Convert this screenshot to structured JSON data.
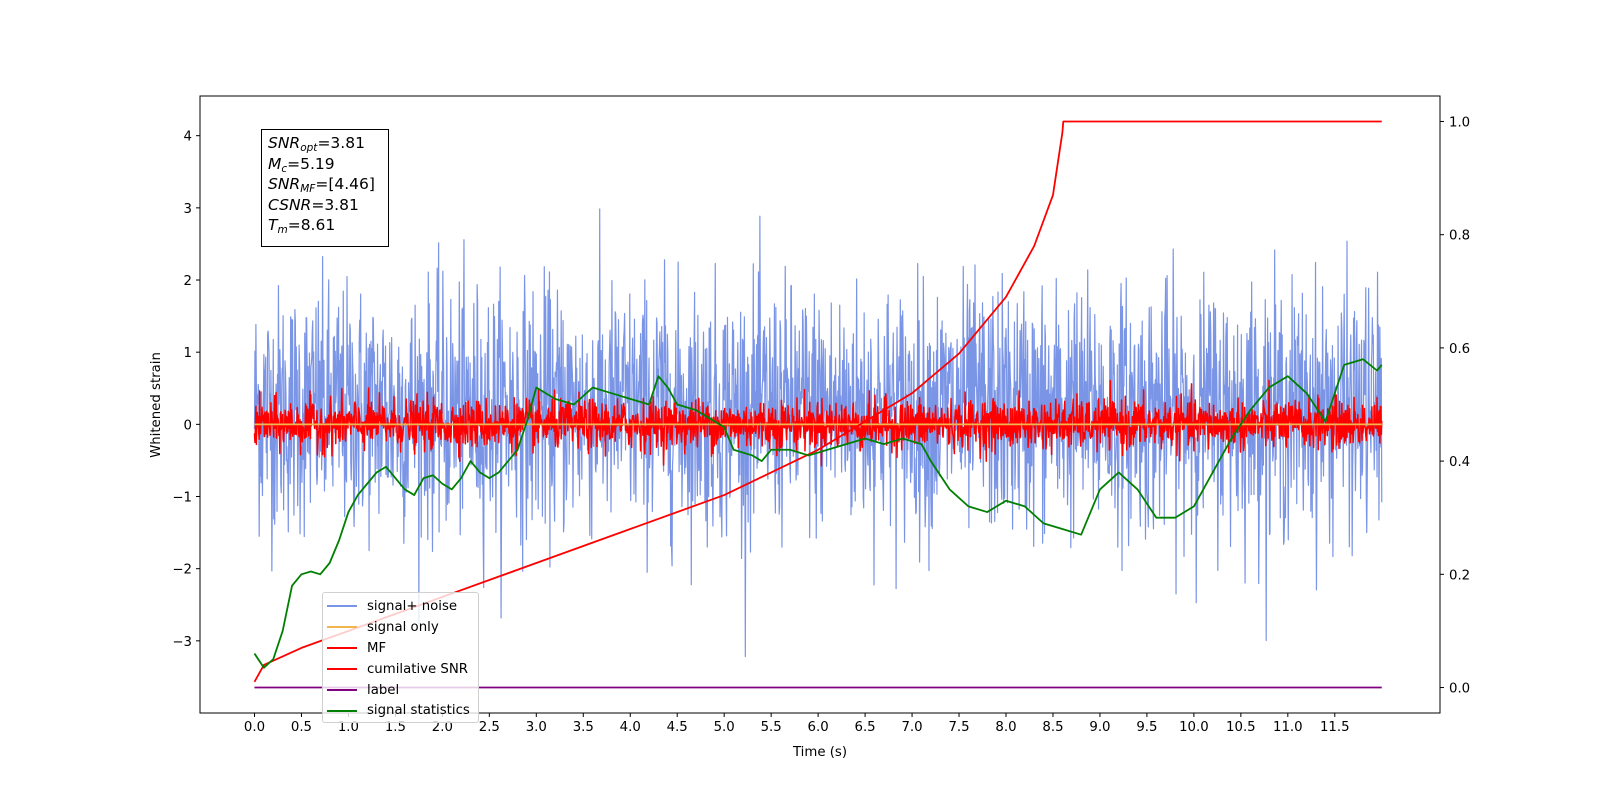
{
  "chart_data": {
    "type": "line",
    "xlabel": "Time (s)",
    "ylabel": "Whitened strain",
    "x_ticks": [
      "0.0",
      "0.5",
      "1.0",
      "1.5",
      "2.0",
      "2.5",
      "3.0",
      "3.5",
      "4.0",
      "4.5",
      "5.0",
      "5.5",
      "6.0",
      "6.5",
      "7.0",
      "7.5",
      "8.0",
      "8.5",
      "9.0",
      "9.5",
      "10.0",
      "10.5",
      "11.0",
      "11.5"
    ],
    "y_ticks_left": [
      "−3",
      "−2",
      "−1",
      "0",
      "1",
      "2",
      "3",
      "4"
    ],
    "y_ticks_right": [
      "0.0",
      "0.2",
      "0.4",
      "0.6",
      "0.8",
      "1.0"
    ],
    "xlim": [
      -0.58,
      12.62
    ],
    "ylim_left": [
      -4.0,
      4.55
    ],
    "ylim_right": [
      -0.045,
      1.045
    ],
    "legend_placement": "lower-left",
    "annotation": {
      "snr_opt": {
        "sym": "SNR",
        "sub": "opt",
        "value": "=3.81"
      },
      "mc": {
        "sym": "M",
        "sub": "c",
        "value": "=5.19"
      },
      "snr_mf": {
        "sym": "SNR",
        "sub": "MF",
        "value": "=[4.46]"
      },
      "csnr": {
        "sym": "CSNR",
        "value": "=3.81"
      },
      "tm": {
        "sym": "T",
        "sub": "m",
        "value": "=8.61"
      }
    },
    "series": [
      {
        "name": "signal+ noise",
        "color": "#7b95e6",
        "axis": "left",
        "kind": "noise",
        "center": 0.2,
        "std": 0.85,
        "range": [
          0,
          12.0
        ]
      },
      {
        "name": "signal only",
        "color": "#f0b64d",
        "axis": "left",
        "kind": "flat",
        "value": 0.0,
        "range": [
          0,
          12.0
        ]
      },
      {
        "name": "MF",
        "color": "#ff0000",
        "axis": "left",
        "kind": "noise",
        "center": 0.0,
        "std": 0.17,
        "range": [
          0,
          12.0
        ]
      },
      {
        "name": "cumilative SNR",
        "color": "#ff0000",
        "axis": "right",
        "points": [
          [
            0,
            0.01
          ],
          [
            0.1,
            0.04
          ],
          [
            0.5,
            0.07
          ],
          [
            1.0,
            0.1
          ],
          [
            2.0,
            0.16
          ],
          [
            3.0,
            0.22
          ],
          [
            4.0,
            0.28
          ],
          [
            5.0,
            0.34
          ],
          [
            6.0,
            0.42
          ],
          [
            7.0,
            0.52
          ],
          [
            7.5,
            0.59
          ],
          [
            8.0,
            0.69
          ],
          [
            8.3,
            0.78
          ],
          [
            8.5,
            0.87
          ],
          [
            8.6,
            0.98
          ],
          [
            8.61,
            1.0
          ],
          [
            12.0,
            1.0
          ]
        ]
      },
      {
        "name": "label",
        "color": "#800080",
        "axis": "right",
        "points": [
          [
            0,
            0.0
          ],
          [
            12.0,
            0.0
          ]
        ]
      },
      {
        "name": "signal statistics",
        "color": "#008000",
        "axis": "right",
        "points": [
          [
            0,
            0.06
          ],
          [
            0.1,
            0.035
          ],
          [
            0.2,
            0.05
          ],
          [
            0.3,
            0.1
          ],
          [
            0.4,
            0.18
          ],
          [
            0.5,
            0.2
          ],
          [
            0.6,
            0.205
          ],
          [
            0.7,
            0.2
          ],
          [
            0.8,
            0.22
          ],
          [
            0.9,
            0.26
          ],
          [
            1.0,
            0.31
          ],
          [
            1.1,
            0.34
          ],
          [
            1.2,
            0.36
          ],
          [
            1.3,
            0.38
          ],
          [
            1.4,
            0.39
          ],
          [
            1.5,
            0.37
          ],
          [
            1.6,
            0.35
          ],
          [
            1.7,
            0.34
          ],
          [
            1.8,
            0.37
          ],
          [
            1.9,
            0.375
          ],
          [
            2.0,
            0.36
          ],
          [
            2.1,
            0.35
          ],
          [
            2.2,
            0.37
          ],
          [
            2.3,
            0.4
          ],
          [
            2.4,
            0.38
          ],
          [
            2.5,
            0.37
          ],
          [
            2.6,
            0.38
          ],
          [
            2.7,
            0.4
          ],
          [
            2.8,
            0.42
          ],
          [
            2.9,
            0.47
          ],
          [
            3.0,
            0.53
          ],
          [
            3.2,
            0.51
          ],
          [
            3.4,
            0.5
          ],
          [
            3.6,
            0.53
          ],
          [
            3.8,
            0.52
          ],
          [
            4.0,
            0.51
          ],
          [
            4.2,
            0.5
          ],
          [
            4.3,
            0.55
          ],
          [
            4.4,
            0.53
          ],
          [
            4.5,
            0.5
          ],
          [
            4.7,
            0.49
          ],
          [
            4.8,
            0.48
          ],
          [
            5.0,
            0.46
          ],
          [
            5.1,
            0.42
          ],
          [
            5.3,
            0.41
          ],
          [
            5.4,
            0.4
          ],
          [
            5.5,
            0.42
          ],
          [
            5.7,
            0.42
          ],
          [
            5.9,
            0.41
          ],
          [
            6.1,
            0.42
          ],
          [
            6.3,
            0.43
          ],
          [
            6.5,
            0.44
          ],
          [
            6.7,
            0.43
          ],
          [
            6.9,
            0.44
          ],
          [
            7.1,
            0.43
          ],
          [
            7.2,
            0.4
          ],
          [
            7.4,
            0.35
          ],
          [
            7.6,
            0.32
          ],
          [
            7.8,
            0.31
          ],
          [
            8.0,
            0.33
          ],
          [
            8.2,
            0.32
          ],
          [
            8.4,
            0.29
          ],
          [
            8.6,
            0.28
          ],
          [
            8.8,
            0.27
          ],
          [
            9.0,
            0.35
          ],
          [
            9.2,
            0.38
          ],
          [
            9.4,
            0.35
          ],
          [
            9.6,
            0.3
          ],
          [
            9.8,
            0.3
          ],
          [
            10.0,
            0.32
          ],
          [
            10.2,
            0.38
          ],
          [
            10.4,
            0.44
          ],
          [
            10.6,
            0.49
          ],
          [
            10.8,
            0.53
          ],
          [
            11.0,
            0.55
          ],
          [
            11.2,
            0.52
          ],
          [
            11.4,
            0.47
          ],
          [
            11.6,
            0.57
          ],
          [
            11.8,
            0.58
          ],
          [
            11.95,
            0.56
          ],
          [
            12.0,
            0.57
          ]
        ]
      }
    ]
  }
}
